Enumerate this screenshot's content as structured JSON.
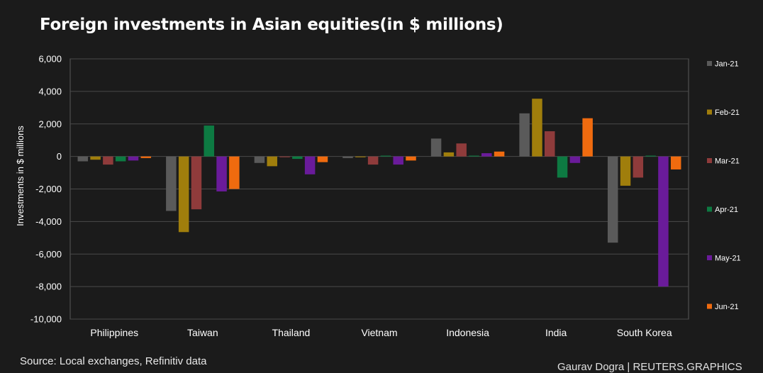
{
  "title": "Foreign investments in Asian equities(in $ millions)",
  "source": "Source: Local exchanges, Refinitiv data",
  "credit": "Gaurav Dogra | REUTERS.GRAPHICS",
  "chart_data": {
    "type": "bar",
    "title": "Foreign investments in Asian equities(in $ millions)",
    "ylabel": "Investments in $ millions",
    "xlabel": "",
    "ylim": [
      -10000,
      6000
    ],
    "yticks": [
      6000,
      4000,
      2000,
      0,
      -2000,
      -4000,
      -6000,
      -8000,
      -10000
    ],
    "ytick_labels": [
      "6,000",
      "4,000",
      "2,000",
      "0",
      "-2,000",
      "-4,000",
      "-6,000",
      "-8,000",
      "-10,000"
    ],
    "grid": true,
    "legend_position": "right",
    "categories": [
      "Philippines",
      "Taiwan",
      "Thailand",
      "Vietnam",
      "Indonesia",
      "India",
      "South Korea"
    ],
    "series": [
      {
        "name": "Jan-21",
        "color": "#5a5a5a",
        "values": [
          -300,
          -3350,
          -400,
          -100,
          1100,
          2650,
          -5300
        ]
      },
      {
        "name": "Feb-21",
        "color": "#a07e0c",
        "values": [
          -200,
          -4650,
          -600,
          -50,
          250,
          3550,
          -1800
        ]
      },
      {
        "name": "Mar-21",
        "color": "#8f3b3b",
        "values": [
          -500,
          -3250,
          -50,
          -500,
          800,
          1550,
          -1300
        ]
      },
      {
        "name": "Apr-21",
        "color": "#0d7a42",
        "values": [
          -300,
          1900,
          -150,
          50,
          50,
          -1300,
          50
        ]
      },
      {
        "name": "May-21",
        "color": "#6a1b9a",
        "values": [
          -250,
          -2150,
          -1100,
          -500,
          200,
          -400,
          -8000
        ]
      },
      {
        "name": "Jun-21",
        "color": "#f06b0f",
        "values": [
          -100,
          -2000,
          -350,
          -250,
          300,
          2350,
          -800
        ]
      }
    ]
  }
}
